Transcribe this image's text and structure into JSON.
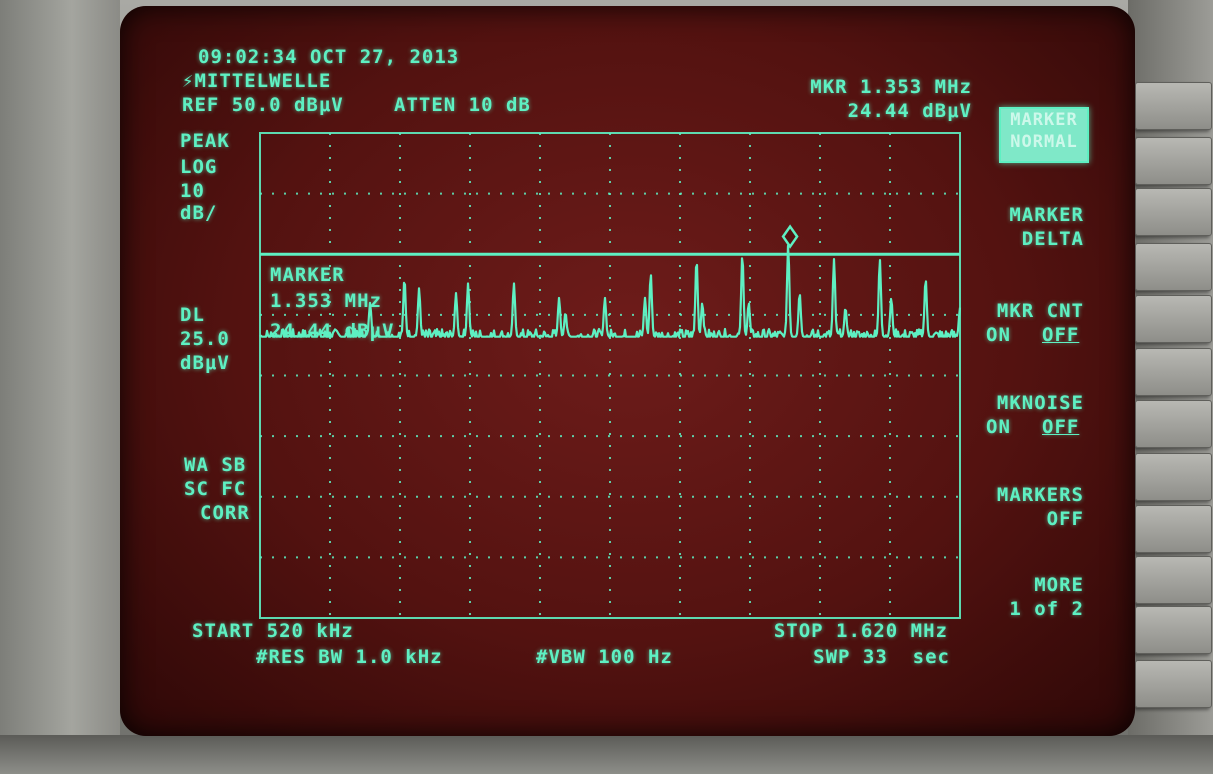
{
  "header": {
    "timestamp": "09:02:34 OCT 27, 2013",
    "title": "MITTELWELLE",
    "ref_level": "REF 50.0 dBμV",
    "attenuation": "ATTEN 10 dB",
    "marker_readout_freq": "MKR 1.353 MHz",
    "marker_readout_level": "24.44 dBμV"
  },
  "left_annotations": {
    "detector": "PEAK",
    "scale_type": "LOG",
    "scale_value": "10",
    "scale_unit": "dB/",
    "display_line_label": "DL",
    "display_line_value": "25.0",
    "display_line_unit": "dBμV",
    "flags_line1": "WA SB",
    "flags_line2": "SC FC",
    "flags_line3": "CORR"
  },
  "marker_box": {
    "label": "MARKER",
    "freq": "1.353 MHz",
    "level": "24.44 dBμV"
  },
  "footer": {
    "start": "START 520 kHz",
    "stop": "STOP 1.620 MHz",
    "rbw": "#RES BW 1.0 kHz",
    "vbw": "#VBW 100 Hz",
    "sweep": "SWP 33  sec"
  },
  "softkeys": {
    "marker_normal_line1": "MARKER",
    "marker_normal_line2": "NORMAL",
    "marker_delta_line1": "MARKER",
    "marker_delta_line2": "DELTA",
    "mkr_cnt_line1": "MKR CNT",
    "mkr_cnt_on": "ON",
    "mkr_cnt_off": "OFF",
    "mknoise_line1": "MKNOISE",
    "mknoise_on": "ON",
    "mknoise_off": "OFF",
    "markers_off_line1": "MARKERS",
    "markers_off_line2": "OFF",
    "more_line1": "MORE",
    "more_line2": "1 of 2"
  },
  "colors": {
    "trace": "#5ef0c2",
    "screen_background": "#531210",
    "graticule": "#5ef0c2"
  },
  "chart_data": {
    "type": "line",
    "x_unit": "MHz",
    "y_unit": "dBμV",
    "xlim": [
      0.52,
      1.62
    ],
    "ylim": [
      -50,
      50
    ],
    "ref_level": 50,
    "scale_db_per_div": 10,
    "grid": true,
    "display_line": 25.0,
    "marker": {
      "x": 1.353,
      "y": 24.44
    },
    "noise_floor": 8,
    "peaks": [
      {
        "x": 0.693,
        "y": 15
      },
      {
        "x": 0.747,
        "y": 20
      },
      {
        "x": 0.77,
        "y": 18
      },
      {
        "x": 0.828,
        "y": 17
      },
      {
        "x": 0.847,
        "y": 19
      },
      {
        "x": 0.919,
        "y": 19
      },
      {
        "x": 0.99,
        "y": 16
      },
      {
        "x": 1.0,
        "y": 13
      },
      {
        "x": 1.062,
        "y": 16
      },
      {
        "x": 1.125,
        "y": 16
      },
      {
        "x": 1.134,
        "y": 21
      },
      {
        "x": 1.206,
        "y": 24
      },
      {
        "x": 1.215,
        "y": 15
      },
      {
        "x": 1.278,
        "y": 25
      },
      {
        "x": 1.288,
        "y": 15
      },
      {
        "x": 1.35,
        "y": 27
      },
      {
        "x": 1.368,
        "y": 17
      },
      {
        "x": 1.422,
        "y": 24
      },
      {
        "x": 1.44,
        "y": 14
      },
      {
        "x": 1.494,
        "y": 24
      },
      {
        "x": 1.512,
        "y": 16
      },
      {
        "x": 1.566,
        "y": 20
      },
      {
        "x": 1.62,
        "y": 14
      }
    ]
  }
}
